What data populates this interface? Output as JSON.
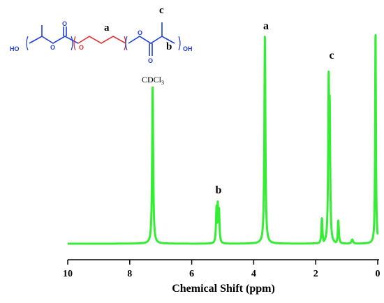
{
  "chart_data": {
    "type": "line",
    "xlabel": "Chemical Shift (ppm)",
    "xlim": [
      10,
      0
    ],
    "x_reversed": true,
    "ticks": [
      10,
      8,
      6,
      4,
      2,
      0
    ],
    "grid": false,
    "line_color": "#33ee33",
    "peaks": [
      {
        "shift": 7.26,
        "height": 0.74,
        "width": 0.02,
        "label": "CDCl3"
      },
      {
        "shift": 5.2,
        "height": 0.18,
        "width": 0.02
      },
      {
        "shift": 5.16,
        "height": 0.2,
        "width": 0.02
      },
      {
        "shift": 5.12,
        "height": 0.17,
        "width": 0.02,
        "label": "b"
      },
      {
        "shift": 3.64,
        "height": 0.98,
        "width": 0.02,
        "label": "a"
      },
      {
        "shift": 1.8,
        "height": 0.12,
        "width": 0.02
      },
      {
        "shift": 1.58,
        "height": 0.82,
        "width": 0.02,
        "label": "c"
      },
      {
        "shift": 1.55,
        "height": 0.7,
        "width": 0.02
      },
      {
        "shift": 1.27,
        "height": 0.11,
        "width": 0.02
      },
      {
        "shift": 0.82,
        "height": 0.02,
        "width": 0.03
      },
      {
        "shift": 0.07,
        "height": 1.0,
        "width": 0.015
      }
    ],
    "annotations": {
      "solvent_main": "CDCl",
      "solvent_sub": "3",
      "peak_a": "a",
      "peak_b": "b",
      "peak_c": "c"
    }
  },
  "structure": {
    "label_a": "a",
    "label_b": "b",
    "label_c": "c",
    "ho_left": "HO",
    "oh_right": "OH",
    "oxygen": "O",
    "blue_color": "#1f3fd6",
    "red_color": "#e03030"
  }
}
